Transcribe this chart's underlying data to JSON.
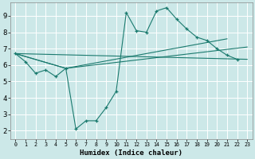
{
  "xlabel": "Humidex (Indice chaleur)",
  "bg_color": "#cce8e8",
  "grid_color": "#b0d8d8",
  "line_color": "#1a7a6e",
  "xlim": [
    -0.5,
    23.5
  ],
  "ylim": [
    1.5,
    9.8
  ],
  "yticks": [
    2,
    3,
    4,
    5,
    6,
    7,
    8,
    9
  ],
  "xticks": [
    0,
    1,
    2,
    3,
    4,
    5,
    6,
    7,
    8,
    9,
    10,
    11,
    12,
    13,
    14,
    15,
    16,
    17,
    18,
    19,
    20,
    21,
    22,
    23
  ],
  "line1_x": [
    0,
    1,
    2,
    3,
    4,
    5,
    6,
    7,
    8,
    9,
    10,
    11,
    12,
    13,
    14,
    15,
    16,
    17,
    18,
    19,
    20,
    21,
    22
  ],
  "line1_y": [
    6.7,
    6.2,
    5.5,
    5.7,
    5.3,
    5.8,
    2.1,
    2.6,
    2.6,
    3.4,
    4.4,
    9.2,
    8.1,
    8.0,
    9.3,
    9.5,
    8.8,
    8.2,
    7.7,
    7.5,
    7.0,
    6.6,
    6.35
  ],
  "line2_x": [
    0,
    23
  ],
  "line2_y": [
    6.7,
    6.35
  ],
  "line3_x": [
    0,
    5,
    21
  ],
  "line3_y": [
    6.7,
    5.8,
    7.6
  ],
  "line4_x": [
    0,
    5,
    23
  ],
  "line4_y": [
    6.7,
    5.8,
    7.1
  ]
}
